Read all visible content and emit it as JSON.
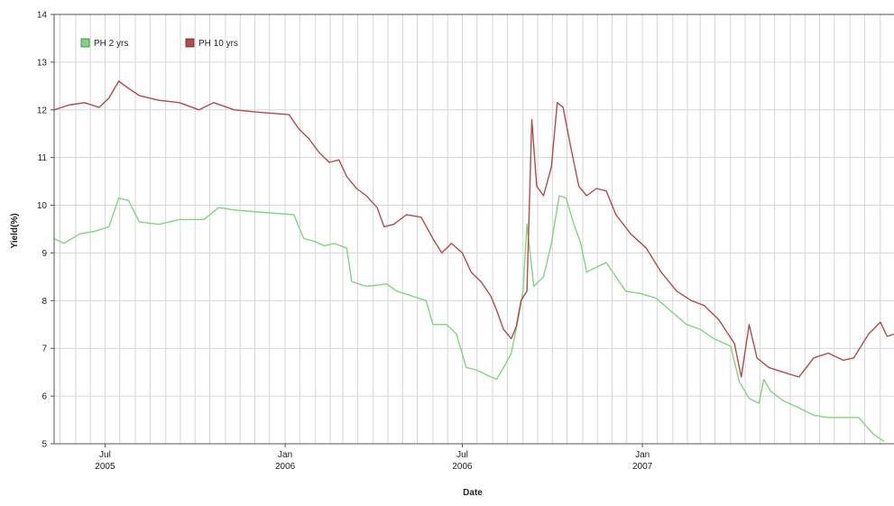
{
  "colors": {
    "background": "#ffffff",
    "grid": "#d6d6d6",
    "axis": "#555555",
    "series_ph2": "#7fd67f",
    "series_ph10": "#b54a4a"
  },
  "chart_data": {
    "type": "line",
    "title": "",
    "xlabel": "Date",
    "ylabel": "Yield(%)",
    "ylim": [
      5,
      14
    ],
    "yticks": [
      5,
      6,
      7,
      8,
      9,
      10,
      11,
      12,
      13,
      14
    ],
    "xlim": [
      "2005-05-10",
      "2007-09-15"
    ],
    "xticks": [
      {
        "date": "2005-07-01",
        "line1": "Jul",
        "line2": "2005"
      },
      {
        "date": "2006-01-01",
        "line1": "Jan",
        "line2": "2006"
      },
      {
        "date": "2006-07-01",
        "line1": "Jul",
        "line2": "2006"
      },
      {
        "date": "2007-01-01",
        "line1": "Jan",
        "line2": "2007"
      }
    ],
    "grid": true,
    "legend_position": "top-left",
    "series": [
      {
        "name": "PH 2 yrs",
        "color": "#7fd67f",
        "points": [
          [
            "2005-05-10",
            9.3
          ],
          [
            "2005-05-20",
            9.2
          ],
          [
            "2005-06-05",
            9.4
          ],
          [
            "2005-06-20",
            9.45
          ],
          [
            "2005-07-05",
            9.55
          ],
          [
            "2005-07-15",
            10.15
          ],
          [
            "2005-07-25",
            10.1
          ],
          [
            "2005-08-05",
            9.65
          ],
          [
            "2005-08-25",
            9.6
          ],
          [
            "2005-09-15",
            9.7
          ],
          [
            "2005-10-10",
            9.7
          ],
          [
            "2005-10-25",
            9.95
          ],
          [
            "2005-11-10",
            9.9
          ],
          [
            "2005-12-10",
            9.85
          ],
          [
            "2006-01-10",
            9.8
          ],
          [
            "2006-01-20",
            9.3
          ],
          [
            "2006-01-30",
            9.25
          ],
          [
            "2006-02-10",
            9.15
          ],
          [
            "2006-02-20",
            9.2
          ],
          [
            "2006-03-05",
            9.1
          ],
          [
            "2006-03-10",
            8.4
          ],
          [
            "2006-03-25",
            8.3
          ],
          [
            "2006-04-15",
            8.35
          ],
          [
            "2006-04-25",
            8.2
          ],
          [
            "2006-05-10",
            8.1
          ],
          [
            "2006-05-25",
            8.0
          ],
          [
            "2006-06-01",
            7.5
          ],
          [
            "2006-06-15",
            7.5
          ],
          [
            "2006-06-25",
            7.3
          ],
          [
            "2006-07-05",
            6.6
          ],
          [
            "2006-07-15",
            6.55
          ],
          [
            "2006-07-25",
            6.45
          ],
          [
            "2006-08-05",
            6.35
          ],
          [
            "2006-08-15",
            6.7
          ],
          [
            "2006-08-20",
            6.9
          ],
          [
            "2006-08-27",
            7.6
          ],
          [
            "2006-09-01",
            8.2
          ],
          [
            "2006-09-05",
            9.6
          ],
          [
            "2006-09-12",
            8.3
          ],
          [
            "2006-09-22",
            8.5
          ],
          [
            "2006-09-30",
            9.2
          ],
          [
            "2006-10-08",
            10.2
          ],
          [
            "2006-10-15",
            10.15
          ],
          [
            "2006-10-23",
            9.6
          ],
          [
            "2006-10-30",
            9.2
          ],
          [
            "2006-11-05",
            8.6
          ],
          [
            "2006-11-15",
            8.7
          ],
          [
            "2006-11-25",
            8.8
          ],
          [
            "2006-12-05",
            8.5
          ],
          [
            "2006-12-15",
            8.2
          ],
          [
            "2006-12-30",
            8.15
          ],
          [
            "2007-01-15",
            8.05
          ],
          [
            "2007-02-01",
            7.75
          ],
          [
            "2007-02-15",
            7.5
          ],
          [
            "2007-03-01",
            7.4
          ],
          [
            "2007-03-15",
            7.2
          ],
          [
            "2007-04-01",
            7.05
          ],
          [
            "2007-04-10",
            6.3
          ],
          [
            "2007-04-20",
            5.95
          ],
          [
            "2007-04-30",
            5.85
          ],
          [
            "2007-05-05",
            6.35
          ],
          [
            "2007-05-12",
            6.1
          ],
          [
            "2007-05-25",
            5.9
          ],
          [
            "2007-06-10",
            5.75
          ],
          [
            "2007-06-25",
            5.6
          ],
          [
            "2007-07-10",
            5.55
          ],
          [
            "2007-07-25",
            5.55
          ],
          [
            "2007-08-10",
            5.55
          ],
          [
            "2007-08-25",
            5.2
          ],
          [
            "2007-09-05",
            5.05
          ]
        ]
      },
      {
        "name": "PH 10 yrs",
        "color": "#b54a4a",
        "points": [
          [
            "2005-05-10",
            12.0
          ],
          [
            "2005-05-25",
            12.1
          ],
          [
            "2005-06-10",
            12.15
          ],
          [
            "2005-06-25",
            12.05
          ],
          [
            "2005-07-05",
            12.25
          ],
          [
            "2005-07-15",
            12.6
          ],
          [
            "2005-07-25",
            12.45
          ],
          [
            "2005-08-05",
            12.3
          ],
          [
            "2005-08-25",
            12.2
          ],
          [
            "2005-09-15",
            12.15
          ],
          [
            "2005-10-05",
            12.0
          ],
          [
            "2005-10-20",
            12.15
          ],
          [
            "2005-11-10",
            12.0
          ],
          [
            "2005-12-05",
            11.95
          ],
          [
            "2006-01-05",
            11.9
          ],
          [
            "2006-01-15",
            11.6
          ],
          [
            "2006-01-25",
            11.4
          ],
          [
            "2006-02-05",
            11.1
          ],
          [
            "2006-02-15",
            10.9
          ],
          [
            "2006-02-25",
            10.95
          ],
          [
            "2006-03-05",
            10.6
          ],
          [
            "2006-03-15",
            10.35
          ],
          [
            "2006-03-25",
            10.2
          ],
          [
            "2006-04-05",
            9.95
          ],
          [
            "2006-04-12",
            9.55
          ],
          [
            "2006-04-22",
            9.6
          ],
          [
            "2006-05-05",
            9.8
          ],
          [
            "2006-05-20",
            9.75
          ],
          [
            "2006-06-01",
            9.3
          ],
          [
            "2006-06-10",
            9.0
          ],
          [
            "2006-06-20",
            9.2
          ],
          [
            "2006-07-01",
            9.0
          ],
          [
            "2006-07-10",
            8.6
          ],
          [
            "2006-07-20",
            8.4
          ],
          [
            "2006-07-30",
            8.1
          ],
          [
            "2006-08-05",
            7.8
          ],
          [
            "2006-08-12",
            7.4
          ],
          [
            "2006-08-20",
            7.2
          ],
          [
            "2006-08-25",
            7.45
          ],
          [
            "2006-08-30",
            8.0
          ],
          [
            "2006-09-05",
            8.2
          ],
          [
            "2006-09-10",
            11.8
          ],
          [
            "2006-09-15",
            10.4
          ],
          [
            "2006-09-22",
            10.2
          ],
          [
            "2006-09-30",
            10.8
          ],
          [
            "2006-10-06",
            12.15
          ],
          [
            "2006-10-12",
            12.05
          ],
          [
            "2006-10-20",
            11.2
          ],
          [
            "2006-10-28",
            10.4
          ],
          [
            "2006-11-05",
            10.2
          ],
          [
            "2006-11-15",
            10.35
          ],
          [
            "2006-11-25",
            10.3
          ],
          [
            "2006-12-05",
            9.8
          ],
          [
            "2006-12-20",
            9.4
          ],
          [
            "2007-01-05",
            9.1
          ],
          [
            "2007-01-20",
            8.6
          ],
          [
            "2007-02-05",
            8.2
          ],
          [
            "2007-02-20",
            8.0
          ],
          [
            "2007-03-05",
            7.9
          ],
          [
            "2007-03-20",
            7.6
          ],
          [
            "2007-04-05",
            7.1
          ],
          [
            "2007-04-12",
            6.4
          ],
          [
            "2007-04-20",
            7.5
          ],
          [
            "2007-04-28",
            6.8
          ],
          [
            "2007-05-10",
            6.6
          ],
          [
            "2007-05-25",
            6.5
          ],
          [
            "2007-06-10",
            6.4
          ],
          [
            "2007-06-25",
            6.8
          ],
          [
            "2007-07-10",
            6.9
          ],
          [
            "2007-07-25",
            6.75
          ],
          [
            "2007-08-05",
            6.8
          ],
          [
            "2007-08-20",
            7.3
          ],
          [
            "2007-09-01",
            7.55
          ],
          [
            "2007-09-08",
            7.25
          ],
          [
            "2007-09-15",
            7.3
          ]
        ]
      }
    ]
  }
}
